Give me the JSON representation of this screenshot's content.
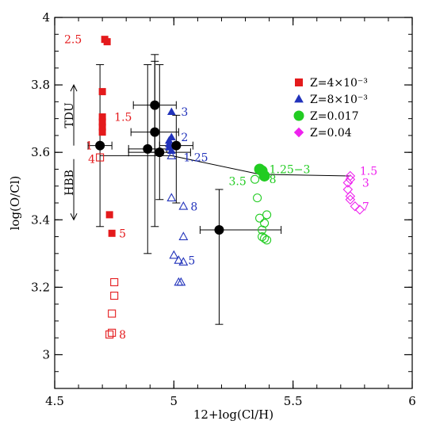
{
  "chart_data": {
    "type": "scatter",
    "xlabel": "12+log(Cl/H)",
    "ylabel": "log(O/Cl)",
    "xlim": [
      4.5,
      6.0
    ],
    "ylim": [
      2.9,
      4.0
    ],
    "x_ticks": [
      4.5,
      5.0,
      5.5,
      6.0
    ],
    "x_tick_labels": [
      "4.5",
      "5",
      "5.5",
      "6"
    ],
    "y_ticks": [
      3.0,
      3.2,
      3.4,
      3.6,
      3.8,
      4.0
    ],
    "y_tick_labels": [
      "3",
      "3.2",
      "3.4",
      "3.6",
      "3.8",
      "4"
    ],
    "colors": {
      "z004": "#e41a1c",
      "z008": "#2233bb",
      "z017": "#22cc22",
      "z04": "#ee22ee",
      "obs": "#000000"
    },
    "legend": {
      "placement": "top-right",
      "entries": [
        {
          "label": "Z=4×10⁻³",
          "marker": "square",
          "color": "#e41a1c"
        },
        {
          "label": "Z=8×10⁻³",
          "marker": "triangle",
          "color": "#2233bb"
        },
        {
          "label": "Z=0.017",
          "marker": "circle",
          "color": "#22cc22"
        },
        {
          "label": "Z=0.04",
          "marker": "diamond",
          "color": "#ee22ee"
        }
      ]
    },
    "series": [
      {
        "name": "Z=4×10⁻³",
        "marker": "square",
        "color": "#e41a1c",
        "filled": [
          [
            4.71,
            3.935
          ],
          [
            4.72,
            3.928
          ],
          [
            4.7,
            3.78
          ],
          [
            4.7,
            3.705
          ],
          [
            4.7,
            3.69
          ],
          [
            4.7,
            3.675
          ],
          [
            4.7,
            3.66
          ],
          [
            4.73,
            3.415
          ],
          [
            4.74,
            3.36
          ]
        ],
        "open": [
          [
            4.69,
            3.585
          ],
          [
            4.75,
            3.215
          ],
          [
            4.75,
            3.175
          ],
          [
            4.74,
            3.122
          ],
          [
            4.74,
            3.065
          ],
          [
            4.73,
            3.06
          ]
        ]
      },
      {
        "name": "Z=8×10⁻³",
        "marker": "triangle",
        "color": "#2233bb",
        "filled": [
          [
            4.99,
            3.72
          ],
          [
            4.99,
            3.645
          ],
          [
            4.98,
            3.635
          ],
          [
            4.98,
            3.625
          ],
          [
            4.98,
            3.615
          ],
          [
            4.99,
            3.605
          ]
        ],
        "open": [
          [
            4.99,
            3.59
          ],
          [
            4.99,
            3.465
          ],
          [
            5.04,
            3.44
          ],
          [
            5.04,
            3.35
          ],
          [
            5.0,
            3.295
          ],
          [
            5.02,
            3.28
          ],
          [
            5.04,
            3.275
          ],
          [
            5.02,
            3.215
          ],
          [
            5.03,
            3.215
          ]
        ]
      },
      {
        "name": "Z=0.017",
        "marker": "circle",
        "color": "#22cc22",
        "filled": [
          [
            5.36,
            3.55
          ],
          [
            5.37,
            3.545
          ],
          [
            5.38,
            3.53
          ]
        ],
        "open": [
          [
            5.34,
            3.52
          ],
          [
            5.35,
            3.465
          ],
          [
            5.39,
            3.415
          ],
          [
            5.36,
            3.405
          ],
          [
            5.38,
            3.39
          ],
          [
            5.37,
            3.37
          ],
          [
            5.37,
            3.35
          ],
          [
            5.38,
            3.345
          ],
          [
            5.39,
            3.34
          ]
        ]
      },
      {
        "name": "Z=0.04",
        "marker": "diamond",
        "color": "#ee22ee",
        "filled": [],
        "open": [
          [
            5.74,
            3.53
          ],
          [
            5.74,
            3.52
          ],
          [
            5.73,
            3.51
          ],
          [
            5.73,
            3.49
          ],
          [
            5.74,
            3.47
          ],
          [
            5.74,
            3.46
          ],
          [
            5.76,
            3.44
          ],
          [
            5.78,
            3.43
          ]
        ]
      }
    ],
    "observations": [
      {
        "x": 4.69,
        "y": 3.62,
        "xerr": [
          0.05,
          0.05
        ],
        "yerr": [
          0.24,
          0.24
        ]
      },
      {
        "x": 4.89,
        "y": 3.61,
        "xerr": [
          0.08,
          0.08
        ],
        "yerr": [
          0.31,
          0.25
        ]
      },
      {
        "x": 4.92,
        "y": 3.74,
        "xerr": [
          0.09,
          0.09
        ],
        "yerr": [
          0.14,
          0.15
        ]
      },
      {
        "x": 4.92,
        "y": 3.66,
        "xerr": [
          0.1,
          0.1
        ],
        "yerr": [
          0.28,
          0.21
        ]
      },
      {
        "x": 4.94,
        "y": 3.6,
        "xerr": [
          0.13,
          0.13
        ],
        "yerr": [
          0.14,
          0.26
        ]
      },
      {
        "x": 5.01,
        "y": 3.62,
        "xerr": [
          0.07,
          0.07
        ],
        "yerr": [
          0.17,
          0.09
        ]
      },
      {
        "x": 5.19,
        "y": 3.37,
        "xerr": [
          0.08,
          0.26
        ],
        "yerr": [
          0.28,
          0.12
        ]
      }
    ],
    "connector_line": [
      [
        4.69,
        3.59
      ],
      [
        4.99,
        3.59
      ],
      [
        5.36,
        3.535
      ],
      [
        5.74,
        3.53
      ]
    ],
    "annotations": [
      {
        "text": "2.5",
        "x": 4.54,
        "y": 3.935,
        "color": "#e41a1c"
      },
      {
        "text": "1.5",
        "x": 4.75,
        "y": 3.705,
        "color": "#e41a1c"
      },
      {
        "text": "1",
        "x": 4.63,
        "y": 3.62,
        "color": "#e41a1c"
      },
      {
        "text": "4",
        "x": 4.64,
        "y": 3.58,
        "color": "#e41a1c"
      },
      {
        "text": "5",
        "x": 4.77,
        "y": 3.36,
        "color": "#e41a1c"
      },
      {
        "text": "8",
        "x": 4.77,
        "y": 3.06,
        "color": "#e41a1c"
      },
      {
        "text": "3",
        "x": 5.03,
        "y": 3.72,
        "color": "#2233bb"
      },
      {
        "text": "2",
        "x": 5.03,
        "y": 3.645,
        "color": "#2233bb"
      },
      {
        "text": "1.25",
        "x": 5.04,
        "y": 3.585,
        "color": "#2233bb"
      },
      {
        "text": "8",
        "x": 5.07,
        "y": 3.44,
        "color": "#2233bb"
      },
      {
        "text": "5",
        "x": 5.06,
        "y": 3.28,
        "color": "#2233bb"
      },
      {
        "text": "1.25−3",
        "x": 5.4,
        "y": 3.55,
        "color": "#22cc22"
      },
      {
        "text": "3.5",
        "x": 5.23,
        "y": 3.515,
        "color": "#22cc22"
      },
      {
        "text": "8",
        "x": 5.4,
        "y": 3.52,
        "color": "#22cc22"
      },
      {
        "text": "1.5",
        "x": 5.78,
        "y": 3.545,
        "color": "#ee22ee"
      },
      {
        "text": "3",
        "x": 5.79,
        "y": 3.51,
        "color": "#ee22ee"
      },
      {
        "text": "7",
        "x": 5.79,
        "y": 3.44,
        "color": "#ee22ee"
      }
    ],
    "side_labels": [
      {
        "text": "TDU",
        "x": 4.57,
        "y": 3.71,
        "direction": "up",
        "arrow_from": 3.62,
        "arrow_to": 3.8
      },
      {
        "text": "HBB",
        "x": 4.57,
        "y": 3.51,
        "direction": "down",
        "arrow_from": 3.58,
        "arrow_to": 3.4
      }
    ]
  }
}
